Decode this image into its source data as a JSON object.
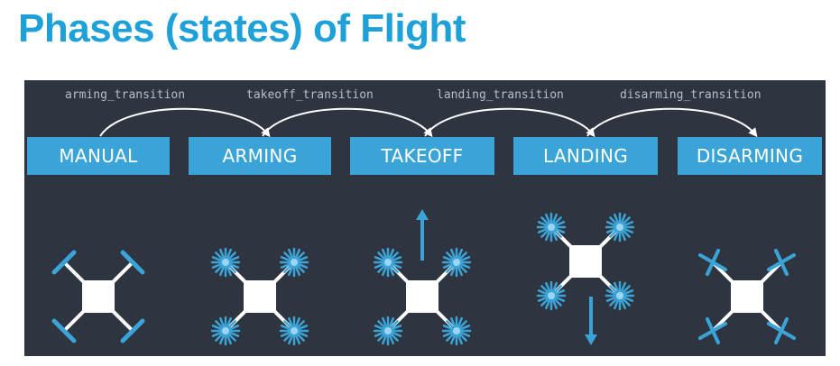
{
  "title": "Phases (states) of Flight",
  "states": [
    "MANUAL",
    "ARMING",
    "TAKEOFF",
    "LANDING",
    "DISARMING"
  ],
  "transitions": [
    "arming_transition",
    "takeoff_transition",
    "landing_transition",
    "disarming_transition"
  ],
  "colors": {
    "title": "#1ea0d8",
    "panel": "#2f3540",
    "state_box": "#3aa4d8",
    "propeller": "#3aa4d8",
    "drone_body": "#ffffff"
  },
  "drones": [
    {
      "state": "MANUAL",
      "propellers": "stopped-bars"
    },
    {
      "state": "ARMING",
      "propellers": "spinning"
    },
    {
      "state": "TAKEOFF",
      "propellers": "spinning",
      "direction": "up-arrow-icon"
    },
    {
      "state": "LANDING",
      "propellers": "spinning",
      "direction": "down-arrow-icon"
    },
    {
      "state": "DISARMING",
      "propellers": "stopped-crosses"
    }
  ]
}
